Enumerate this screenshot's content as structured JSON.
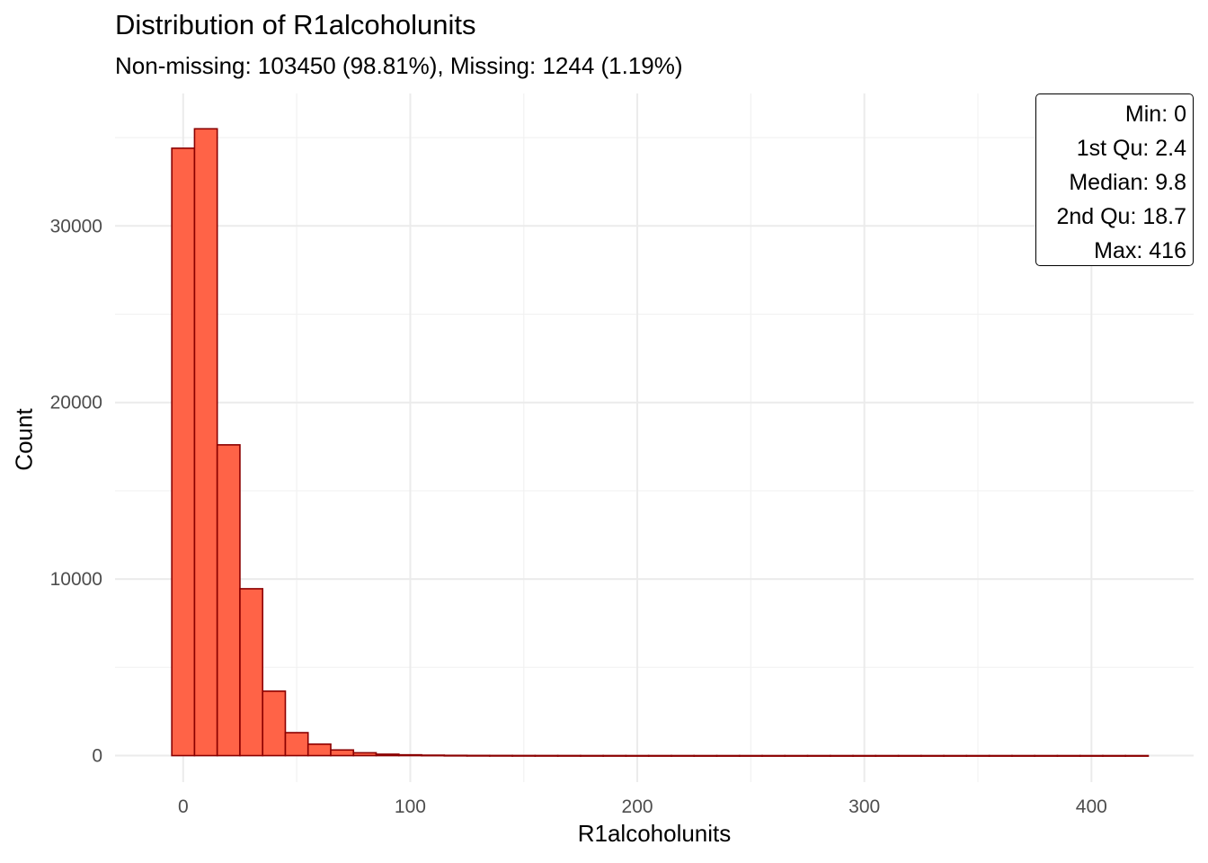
{
  "chart_data": {
    "type": "bar",
    "title": "Distribution of R1alcoholunits",
    "subtitle": "Non-missing: 103450 (98.81%), Missing: 1244 (1.19%)",
    "xlabel": "R1alcoholunits",
    "ylabel": "Count",
    "xlim": [
      -30,
      445
    ],
    "ylim": [
      -1500,
      37500
    ],
    "x_ticks": [
      0,
      100,
      200,
      300,
      400
    ],
    "y_ticks": [
      0,
      10000,
      20000,
      30000
    ],
    "grid": true,
    "bin_width": 10,
    "bin_start": -5,
    "values": [
      34400,
      35500,
      17600,
      9450,
      3650,
      1300,
      650,
      320,
      160,
      80,
      45,
      25,
      15,
      10,
      8,
      6,
      5,
      4,
      3,
      3,
      2,
      2,
      2,
      1,
      1,
      1,
      1,
      1,
      1,
      1,
      1,
      1,
      1,
      1,
      1,
      1,
      1,
      1,
      1,
      1,
      1,
      1,
      1
    ],
    "fill_color": "#FF6347",
    "edge_color": "#8B0000"
  },
  "stats": [
    "Min: 0",
    "1st Qu: 2.4",
    "Median: 9.8",
    "2nd Qu: 18.7",
    "Max: 416"
  ]
}
